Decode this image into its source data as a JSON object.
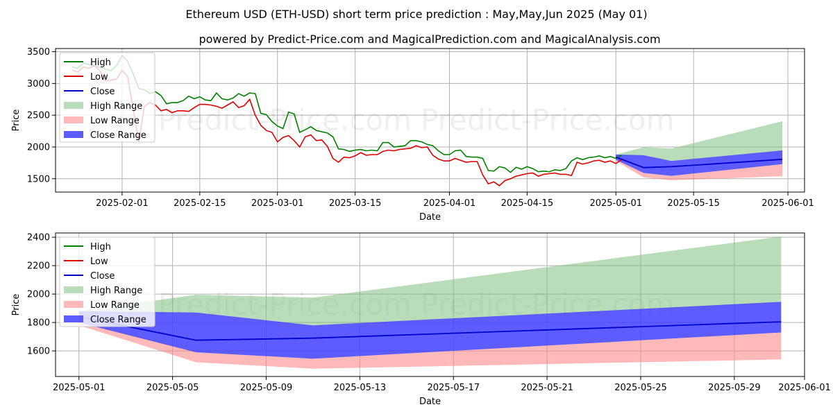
{
  "title": "Ethereum USD (ETH-USD) short term price prediction : May,May,Jun 2025 (May 01)",
  "subtitle": "powered by Predict-Price.com and MagicalPrediction.com and MagicalAnalysis.com",
  "watermark": "Predict-Price.com",
  "colors": {
    "high": "#008000",
    "low": "#e00000",
    "close": "#0000cc",
    "high_range": "#80c080",
    "low_range": "#ff8080",
    "close_range": "#4040ff"
  },
  "legend": {
    "position": "upper-left",
    "items": [
      {
        "label": "High",
        "kind": "line",
        "color_key": "high"
      },
      {
        "label": "Low",
        "kind": "line",
        "color_key": "low"
      },
      {
        "label": "Close",
        "kind": "line",
        "color_key": "close"
      },
      {
        "label": "High Range",
        "kind": "patch",
        "color_key": "high_range"
      },
      {
        "label": "Low Range",
        "kind": "patch",
        "color_key": "low_range"
      },
      {
        "label": "Close Range",
        "kind": "patch",
        "color_key": "close_range"
      }
    ]
  },
  "chart_data": [
    {
      "type": "line",
      "xlabel": "Date",
      "ylabel": "Price",
      "xlim": [
        "2025-01-20",
        "2025-06-04"
      ],
      "ylim": [
        1290,
        3550
      ],
      "grid": true,
      "xticks": [
        "2025-02-01",
        "2025-02-15",
        "2025-03-01",
        "2025-03-15",
        "2025-04-01",
        "2025-04-15",
        "2025-05-01",
        "2025-05-15",
        "2025-06-01"
      ],
      "yticks": [
        1500,
        2000,
        2500,
        3000,
        3500
      ],
      "history": {
        "start": "2025-01-23",
        "high": [
          3260,
          3240,
          3320,
          3300,
          3280,
          3250,
          3230,
          3200,
          3280,
          3440,
          3350,
          3150,
          2920,
          2900,
          2840,
          2870,
          2810,
          2680,
          2700,
          2700,
          2730,
          2800,
          2760,
          2790,
          2740,
          2730,
          2850,
          2760,
          2740,
          2770,
          2840,
          2800,
          2850,
          2840,
          2530,
          2510,
          2400,
          2330,
          2290,
          2550,
          2520,
          2230,
          2270,
          2320,
          2260,
          2240,
          2220,
          2160,
          1970,
          1960,
          1930,
          1950,
          1960,
          1940,
          1950,
          1940,
          2070,
          2070,
          2000,
          2010,
          2020,
          2100,
          2100,
          2080,
          2040,
          2020,
          1940,
          1880,
          1880,
          1940,
          1950,
          1850,
          1840,
          1840,
          1820,
          1630,
          1620,
          1690,
          1670,
          1600,
          1680,
          1650,
          1690,
          1660,
          1610,
          1620,
          1610,
          1640,
          1630,
          1660,
          1780,
          1830,
          1800,
          1830,
          1840,
          1860,
          1830,
          1850,
          1820,
          1870
        ],
        "low": [
          3210,
          3180,
          3260,
          3240,
          3280,
          3200,
          3040,
          3050,
          3070,
          3210,
          3100,
          2600,
          2080,
          2640,
          2700,
          2660,
          2570,
          2590,
          2540,
          2570,
          2570,
          2560,
          2620,
          2670,
          2670,
          2660,
          2640,
          2610,
          2660,
          2710,
          2620,
          2650,
          2750,
          2500,
          2340,
          2260,
          2230,
          2080,
          2150,
          2180,
          2100,
          2000,
          2160,
          2190,
          2100,
          2110,
          2010,
          1820,
          1760,
          1840,
          1830,
          1860,
          1910,
          1870,
          1880,
          1880,
          1930,
          1950,
          1940,
          1960,
          1970,
          1980,
          2020,
          1990,
          2000,
          1870,
          1810,
          1780,
          1780,
          1820,
          1790,
          1760,
          1770,
          1770,
          1560,
          1420,
          1450,
          1390,
          1470,
          1500,
          1540,
          1560,
          1580,
          1590,
          1540,
          1570,
          1580,
          1590,
          1570,
          1570,
          1550,
          1760,
          1730,
          1750,
          1780,
          1790,
          1760,
          1780,
          1740,
          1800
        ]
      },
      "forecast": {
        "x": [
          "2025-05-01",
          "2025-05-06",
          "2025-05-11",
          "2025-05-31"
        ],
        "close": [
          1840,
          1675,
          1690,
          1805
        ],
        "high_range_upper": [
          1880,
          1995,
          1975,
          2405
        ],
        "high_range_lower": [
          1850,
          1870,
          1780,
          1940
        ],
        "close_range_upper": [
          1880,
          1870,
          1780,
          1945
        ],
        "close_range_lower": [
          1800,
          1590,
          1545,
          1730
        ],
        "low_range_upper": [
          1810,
          1590,
          1545,
          1730
        ],
        "low_range_lower": [
          1780,
          1520,
          1475,
          1540
        ]
      }
    },
    {
      "type": "line",
      "xlabel": "Date",
      "ylabel": "Price",
      "xlim": [
        "2025-04-30",
        "2025-06-01"
      ],
      "ylim": [
        1420,
        2430
      ],
      "grid": true,
      "xticks": [
        "2025-05-01",
        "2025-05-05",
        "2025-05-09",
        "2025-05-13",
        "2025-05-17",
        "2025-05-21",
        "2025-05-25",
        "2025-05-29",
        "2025-06-01"
      ],
      "yticks": [
        1600,
        1800,
        2000,
        2200,
        2400
      ],
      "use_forecast_of_first": true
    }
  ]
}
